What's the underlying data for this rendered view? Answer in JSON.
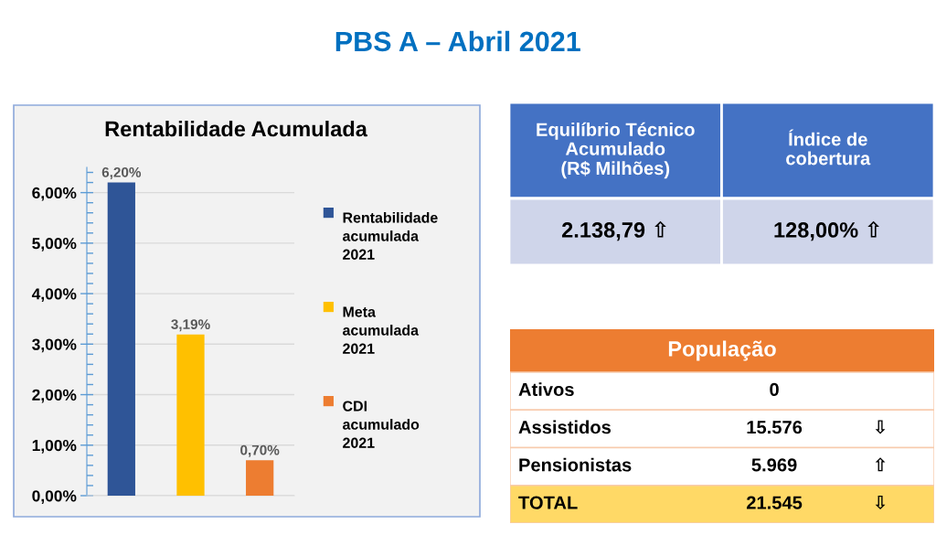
{
  "chart_data": [
    {
      "type": "other",
      "title": "PBS A – Abril 2021"
    },
    {
      "type": "bar",
      "title": "Rentabilidade Acumulada",
      "categories": [
        null
      ],
      "series": [
        {
          "name": "Rentabilidade\nacumulada\n2021",
          "color": "#2f5597",
          "values": [
            6.2
          ],
          "value_labels": [
            "6,20%"
          ]
        },
        {
          "name": "Meta\nacumulada\n2021",
          "color": "#ffc000",
          "values": [
            3.19
          ],
          "value_labels": [
            "3,19%"
          ]
        },
        {
          "name": "CDI\nacumulado\n2021",
          "color": "#ed7d31",
          "values": [
            0.7
          ],
          "value_labels": [
            "0,70%"
          ]
        }
      ],
      "ylim": [
        0,
        6.5
      ],
      "yticks": [
        {
          "value": 0,
          "label": "0,00%"
        },
        {
          "value": 1,
          "label": "1,00%"
        },
        {
          "value": 2,
          "label": "2,00%"
        },
        {
          "value": 3,
          "label": "3,00%"
        },
        {
          "value": 4,
          "label": "4,00%"
        },
        {
          "value": 5,
          "label": "5,00%"
        },
        {
          "value": 6,
          "label": "6,00%"
        }
      ],
      "grid": "y",
      "legend": "right"
    },
    {
      "type": "other",
      "categories": [
        "Equilíbrio Técnico\nAcumulado\n(R$ Milhões)",
        "Índice de\ncobertura"
      ],
      "cell_labels": [
        [
          "2.138,79 ⇧",
          "128,00% ⇧"
        ]
      ]
    },
    {
      "type": "other",
      "title": "População",
      "y_categories": [
        "Ativos",
        "Assistidos",
        "Pensionistas",
        "TOTAL"
      ],
      "cell_labels": [
        [
          "0",
          null
        ],
        [
          "15.576",
          "⇩"
        ],
        [
          "5.969",
          "⇧"
        ],
        [
          "21.545",
          "⇩"
        ]
      ]
    }
  ]
}
